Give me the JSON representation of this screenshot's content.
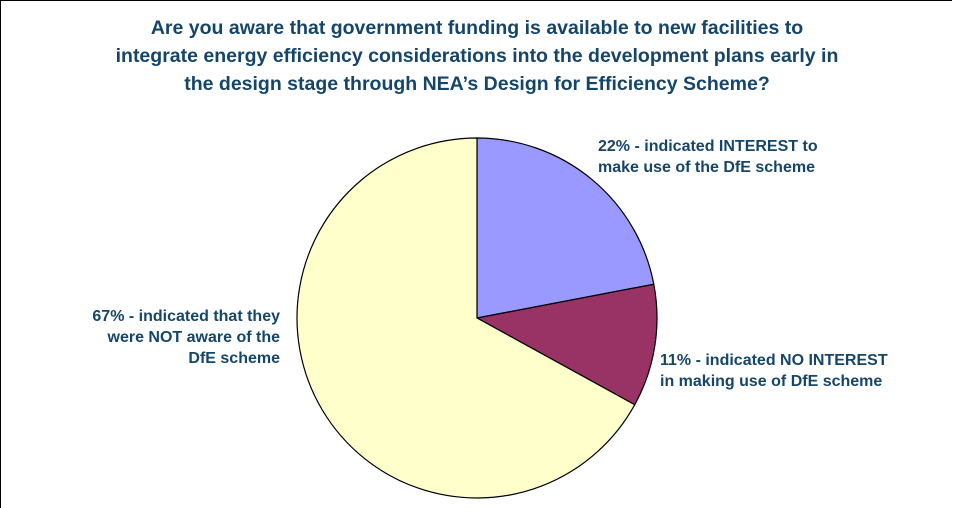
{
  "chart_data": {
    "type": "pie",
    "title_lines": [
      "Are you aware that government funding is available to new facilities to",
      "integrate energy efficiency considerations into the development plans early in",
      "the design stage through NEA’s Design for Efficiency Scheme?"
    ],
    "slices": [
      {
        "value": 22,
        "color": "#9999ff",
        "label_lines": [
          "22% - indicated INTEREST to",
          "make use of the DfE scheme"
        ]
      },
      {
        "value": 11,
        "color": "#993366",
        "label_lines": [
          "11% - indicated NO INTEREST",
          "in making use of DfE scheme"
        ]
      },
      {
        "value": 67,
        "color": "#ffffcc",
        "label_lines": [
          "67% - indicated that they",
          "were NOT aware of the",
          "DfE scheme"
        ]
      }
    ],
    "start_angle": "12 o'clock",
    "direction": "clockwise",
    "legend": "none"
  }
}
